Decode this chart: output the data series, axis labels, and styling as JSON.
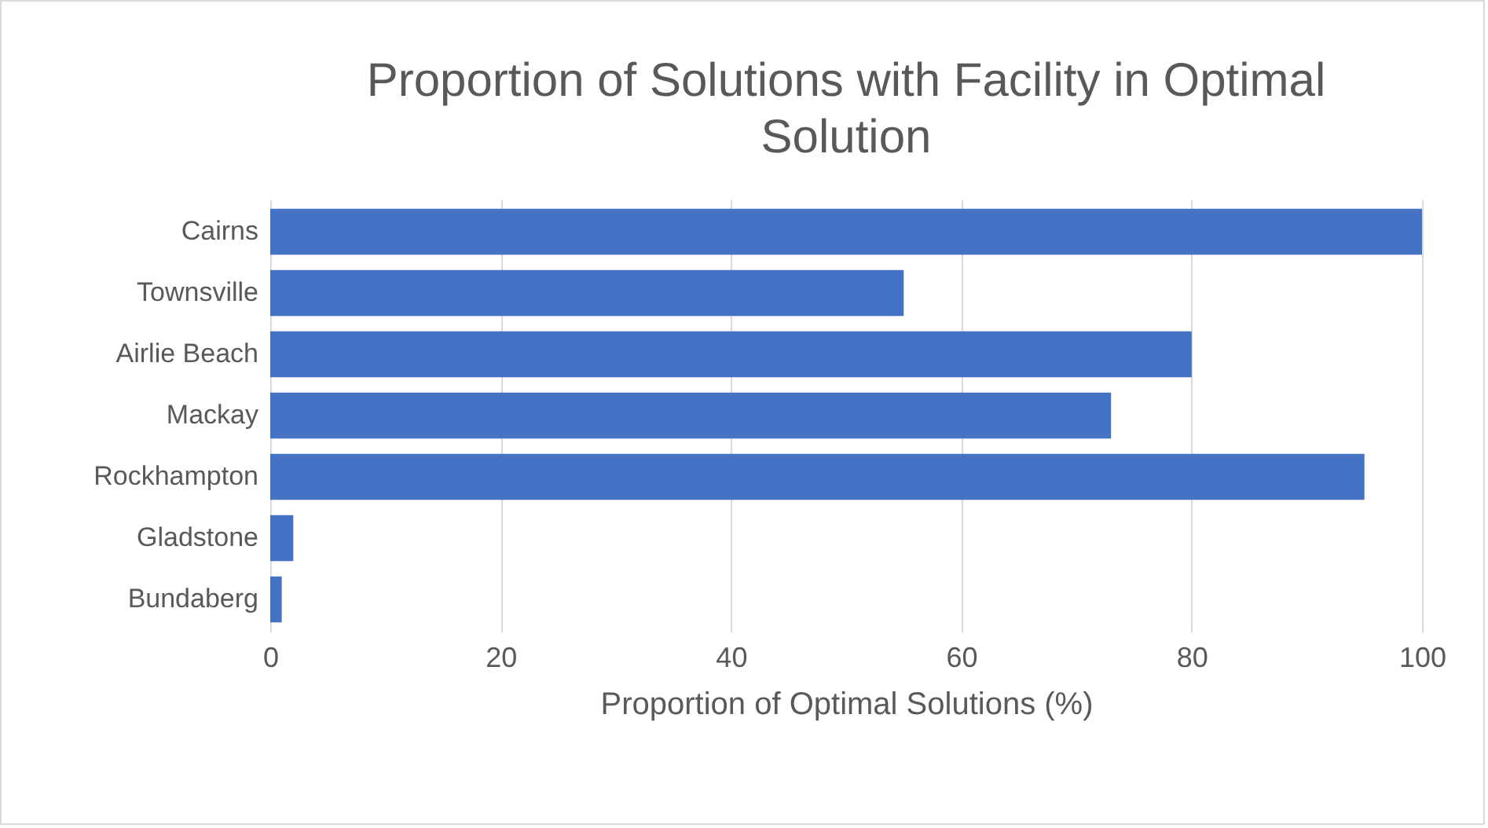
{
  "chart_data": {
    "type": "bar",
    "orientation": "horizontal",
    "title": "Proportion of Solutions with Facility in Optimal Solution",
    "xlabel": "Proportion of Optimal Solutions (%)",
    "categories": [
      "Cairns",
      "Townsville",
      "Airlie Beach",
      "Mackay",
      "Rockhampton",
      "Gladstone",
      "Bundaberg"
    ],
    "values": [
      100,
      55,
      80,
      73,
      95,
      2,
      1
    ],
    "color": "#4472c4",
    "xlim": [
      0,
      100
    ],
    "xticks": [
      0,
      20,
      40,
      60,
      80,
      100
    ],
    "grid": "x"
  }
}
